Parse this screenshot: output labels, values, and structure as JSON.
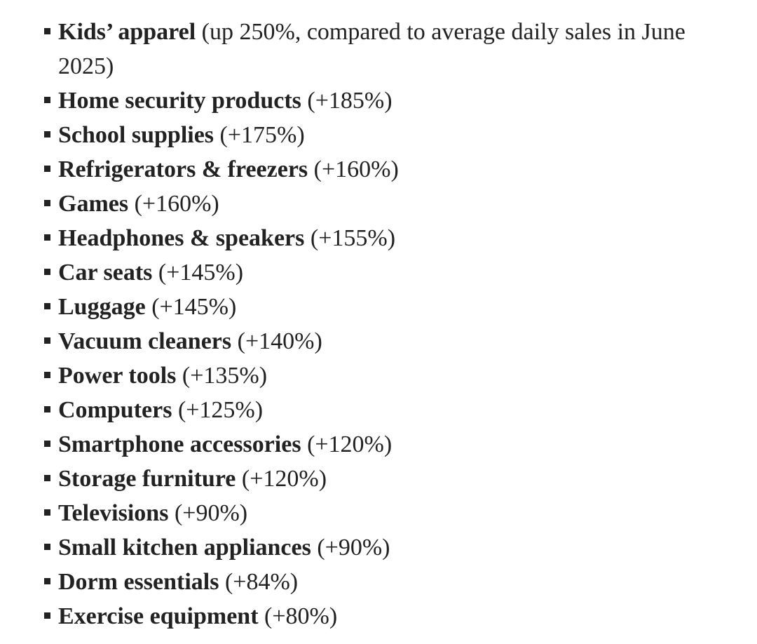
{
  "list": {
    "items": [
      {
        "name": "Kids’ apparel",
        "note": "(up 250%, compared to average daily sales in June 2025)"
      },
      {
        "name": "Home security products",
        "note": "(+185%)"
      },
      {
        "name": "School supplies",
        "note": "(+175%)"
      },
      {
        "name": "Refrigerators & freezers",
        "note": "(+160%)"
      },
      {
        "name": "Games",
        "note": "(+160%)"
      },
      {
        "name": "Headphones & speakers",
        "note": "(+155%)"
      },
      {
        "name": "Car seats",
        "note": "(+145%)"
      },
      {
        "name": "Luggage",
        "note": "(+145%)"
      },
      {
        "name": "Vacuum cleaners",
        "note": "(+140%)"
      },
      {
        "name": "Power tools",
        "note": "(+135%)"
      },
      {
        "name": "Computers",
        "note": "(+125%)"
      },
      {
        "name": "Smartphone accessories",
        "note": "(+120%)"
      },
      {
        "name": "Storage furniture",
        "note": "(+120%)"
      },
      {
        "name": "Televisions",
        "note": "(+90%)"
      },
      {
        "name": "Small kitchen appliances",
        "note": "(+90%)"
      },
      {
        "name": "Dorm essentials",
        "note": "(+84%)"
      },
      {
        "name": "Exercise equipment",
        "note": "(+80%)"
      }
    ]
  }
}
